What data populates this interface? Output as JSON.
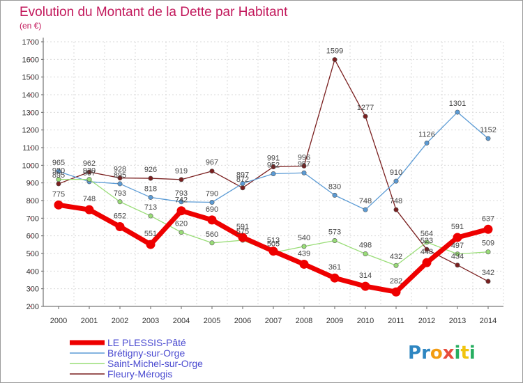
{
  "title": "Evolution du Montant de la Dette par Habitant",
  "unit": "(en €)",
  "logo": {
    "letters": [
      "P",
      "r",
      "o",
      "x",
      "i",
      "t",
      "i"
    ],
    "colors": [
      "#2e86c1",
      "#2e86c1",
      "#f39c12",
      "#e74c3c",
      "#27ae60",
      "#f1c40f",
      "#27ae60"
    ]
  },
  "chart_data": {
    "type": "line",
    "x": [
      "2000",
      "2001",
      "2002",
      "2003",
      "2004",
      "2005",
      "2006",
      "2007",
      "2008",
      "2009",
      "2010",
      "2011",
      "2012",
      "2013",
      "2014"
    ],
    "ylim": [
      200,
      1700
    ],
    "yticks": [
      200,
      300,
      400,
      500,
      600,
      700,
      800,
      900,
      1000,
      1100,
      1200,
      1300,
      1400,
      1500,
      1600,
      1700
    ],
    "grid": true,
    "legend_position": "bottom-left",
    "series": [
      {
        "name": "Fleury-Mérogis",
        "color": "#7a1f1f",
        "values": [
          895,
          962,
          928,
          926,
          919,
          967,
          872,
          991,
          996,
          1599,
          1277,
          748,
          523,
          434,
          342
        ]
      },
      {
        "name": "Brétigny-sur-Orge",
        "color": "#5b9bd5",
        "values": [
          965,
          907,
          895,
          818,
          793,
          790,
          897,
          952,
          957,
          830,
          748,
          910,
          1126,
          1301,
          1152
        ]
      },
      {
        "name": "Saint-Michel-sur-Orge",
        "color": "#99dd77",
        "values": [
          920,
          920,
          793,
          713,
          620,
          560,
          575,
          505,
          540,
          573,
          498,
          432,
          564,
          497,
          509
        ]
      },
      {
        "name": "LE PLESSIS-Pâté",
        "color": "#ee0000",
        "values": [
          775,
          748,
          652,
          551,
          742,
          690,
          591,
          513,
          439,
          361,
          314,
          282,
          448,
          591,
          637
        ]
      }
    ],
    "legend_order": [
      "LE PLESSIS-Pâté",
      "Brétigny-sur-Orge",
      "Saint-Michel-sur-Orge",
      "Fleury-Mérogis"
    ]
  }
}
